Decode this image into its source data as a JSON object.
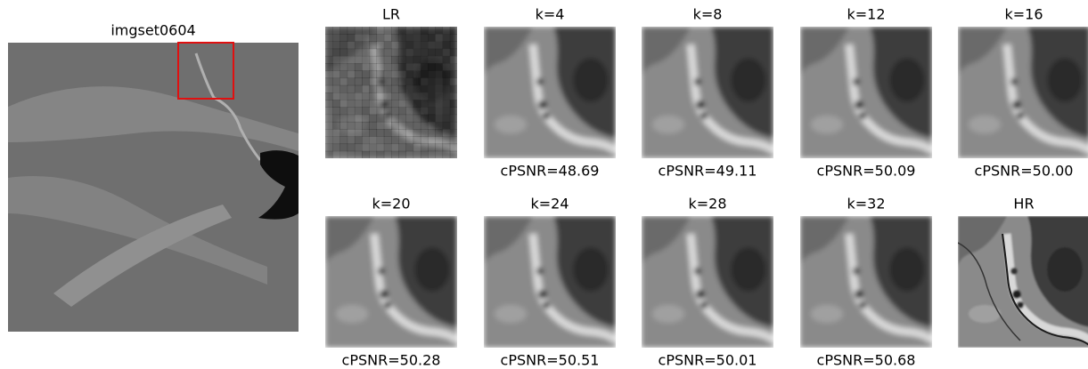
{
  "overview": {
    "title": "imgset0604"
  },
  "panels": [
    {
      "title": "LR"
    },
    {
      "title": "k=4",
      "caption": "cPSNR=48.69"
    },
    {
      "title": "k=8",
      "caption": "cPSNR=49.11"
    },
    {
      "title": "k=12",
      "caption": "cPSNR=50.09"
    },
    {
      "title": "k=16",
      "caption": "cPSNR=50.00"
    },
    {
      "title": "k=20",
      "caption": "cPSNR=50.28"
    },
    {
      "title": "k=24",
      "caption": "cPSNR=50.51"
    },
    {
      "title": "k=28",
      "caption": "cPSNR=50.01"
    },
    {
      "title": "k=32",
      "caption": "cPSNR=50.68"
    },
    {
      "title": "HR"
    }
  ]
}
